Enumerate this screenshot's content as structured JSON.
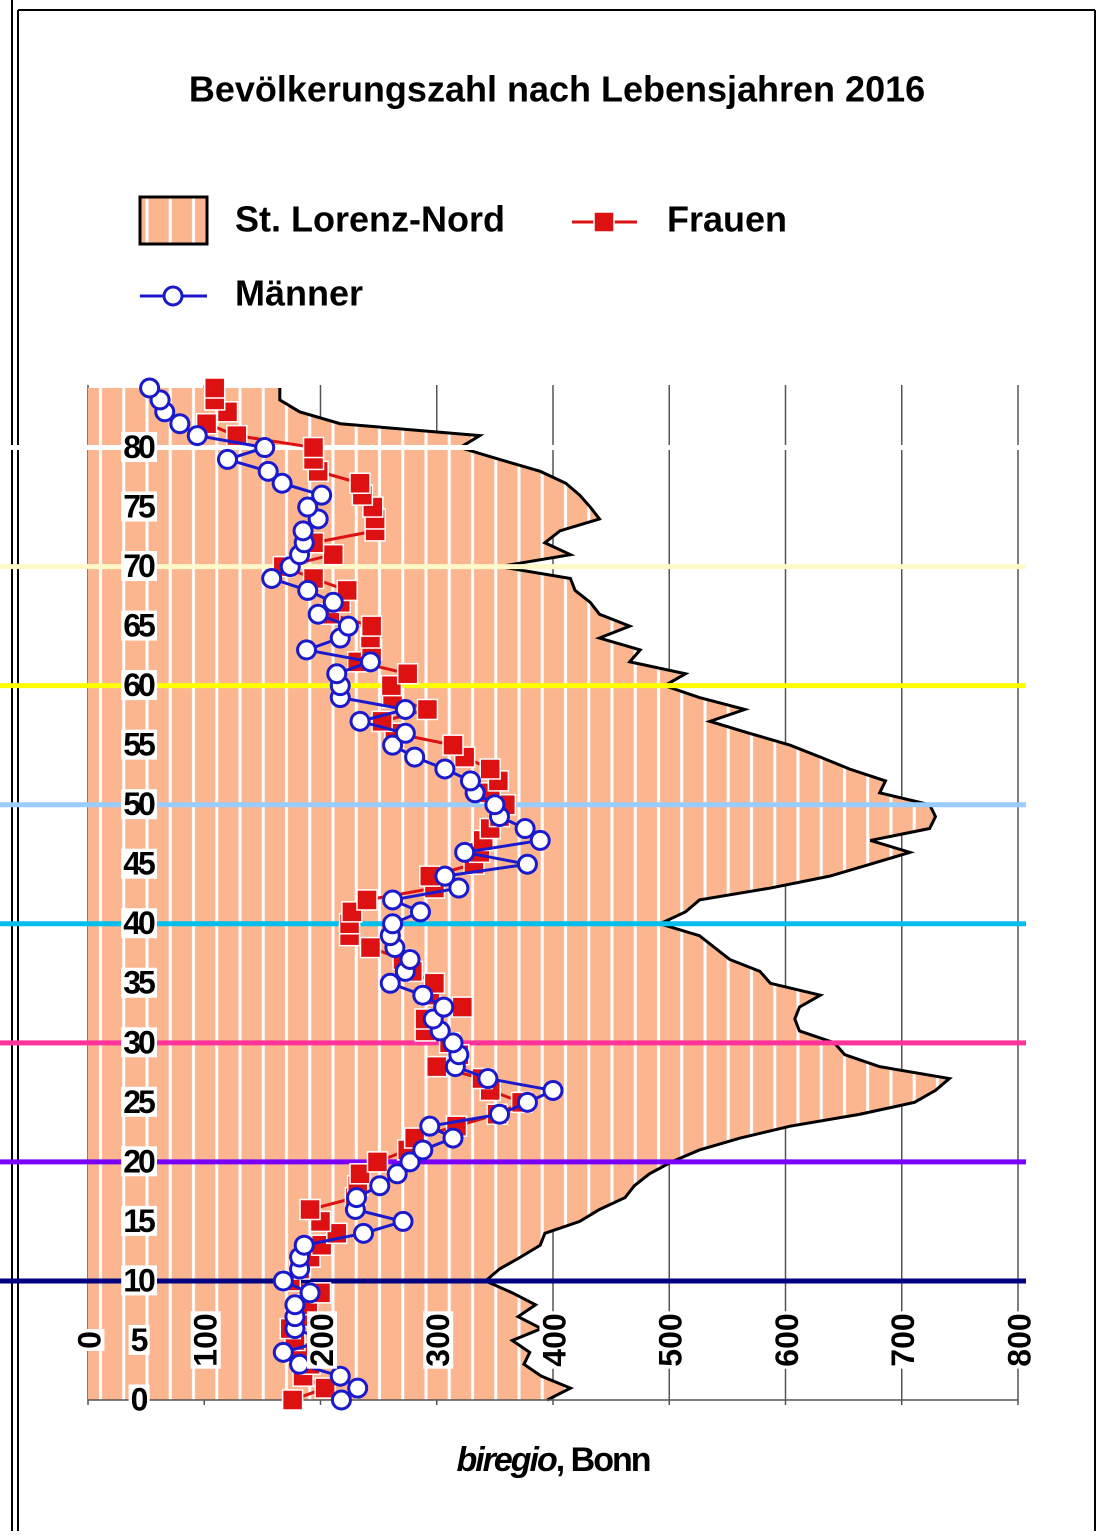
{
  "chart_data": {
    "type": "line",
    "orientation": "horizontal",
    "title": "Bevölkerungszahl nach Lebensjahren 2016",
    "source": [
      "biregio",
      ", Bonn"
    ],
    "y": [
      0,
      1,
      2,
      3,
      4,
      5,
      6,
      7,
      8,
      9,
      10,
      11,
      12,
      13,
      14,
      15,
      16,
      17,
      18,
      19,
      20,
      21,
      22,
      23,
      24,
      25,
      26,
      27,
      28,
      29,
      30,
      31,
      32,
      33,
      34,
      35,
      36,
      37,
      38,
      39,
      40,
      41,
      42,
      43,
      44,
      45,
      46,
      47,
      48,
      49,
      50,
      51,
      52,
      53,
      54,
      55,
      56,
      57,
      58,
      59,
      60,
      61,
      62,
      63,
      64,
      65,
      66,
      67,
      68,
      69,
      70,
      71,
      72,
      73,
      74,
      75,
      76,
      77,
      78,
      79,
      80,
      81,
      82,
      83,
      84,
      85
    ],
    "ylim": [
      0,
      85
    ],
    "yticks": [
      0,
      5,
      10,
      15,
      20,
      25,
      30,
      35,
      40,
      45,
      50,
      55,
      60,
      65,
      70,
      75,
      80
    ],
    "xlim": [
      0,
      800
    ],
    "xticks": [
      0,
      100,
      200,
      300,
      400,
      500,
      600,
      700,
      800
    ],
    "grid": true,
    "reference_lines": [
      {
        "value": 10,
        "color": "#000080"
      },
      {
        "value": 20,
        "color": "#7a00ff"
      },
      {
        "value": 30,
        "color": "#ff3399"
      },
      {
        "value": 40,
        "color": "#00bfef"
      },
      {
        "value": 50,
        "color": "#99ccff"
      },
      {
        "value": 60,
        "color": "#ffff00"
      },
      {
        "value": 70,
        "color": "#fff8c8"
      },
      {
        "value": 80,
        "color": "#ffffff"
      }
    ],
    "series": [
      {
        "name": "St. Lorenz-Nord",
        "kind": "area",
        "color": "#fbb58f",
        "values": [
          395,
          415,
          390,
          375,
          380,
          365,
          390,
          370,
          385,
          365,
          342,
          354,
          372,
          389,
          393,
          423,
          440,
          462,
          470,
          483,
          502,
          526,
          561,
          604,
          664,
          711,
          729,
          741,
          681,
          651,
          642,
          612,
          608,
          612,
          630,
          587,
          578,
          552,
          539,
          526,
          492,
          514,
          526,
          587,
          638,
          673,
          707,
          673,
          724,
          729,
          724,
          681,
          686,
          655,
          630,
          604,
          569,
          535,
          565,
          526,
          496,
          514,
          466,
          475,
          440,
          466,
          440,
          432,
          419,
          415,
          354,
          415,
          393,
          406,
          440,
          432,
          423,
          411,
          389,
          354,
          320,
          337,
          217,
          182,
          165,
          165
        ]
      },
      {
        "name": "Frauen",
        "kind": "square",
        "color": "#dd1111",
        "values": [
          176,
          204,
          185,
          191,
          181,
          178,
          174,
          188,
          189,
          200,
          174,
          182,
          191,
          201,
          214,
          200,
          191,
          230,
          232,
          234,
          249,
          275,
          281,
          317,
          352,
          373,
          346,
          339,
          300,
          319,
          311,
          290,
          290,
          322,
          294,
          298,
          279,
          271,
          243,
          225,
          225,
          227,
          240,
          298,
          294,
          332,
          337,
          340,
          346,
          354,
          359,
          346,
          353,
          346,
          324,
          314,
          264,
          253,
          292,
          262,
          261,
          275,
          232,
          244,
          243,
          244,
          208,
          217,
          223,
          194,
          168,
          211,
          194,
          247,
          247,
          245,
          236,
          234,
          198,
          194,
          194,
          128,
          102,
          120,
          109,
          109
        ]
      },
      {
        "name": "Männer",
        "kind": "circle",
        "color": "#1a1acc",
        "values": [
          218,
          232,
          217,
          182,
          168,
          204,
          178,
          178,
          178,
          191,
          168,
          182,
          182,
          186,
          237,
          271,
          230,
          231,
          251,
          266,
          277,
          288,
          314,
          294,
          354,
          378,
          400,
          344,
          316,
          319,
          314,
          303,
          297,
          306,
          288,
          260,
          273,
          277,
          264,
          260,
          262,
          286,
          262,
          319,
          307,
          378,
          324,
          389,
          376,
          354,
          350,
          333,
          329,
          307,
          281,
          262,
          273,
          234,
          273,
          217,
          217,
          214,
          243,
          188,
          217,
          224,
          198,
          211,
          189,
          158,
          174,
          182,
          186,
          185,
          198,
          189,
          201,
          167,
          155,
          120,
          152,
          94,
          79,
          66,
          62,
          53
        ]
      }
    ]
  }
}
